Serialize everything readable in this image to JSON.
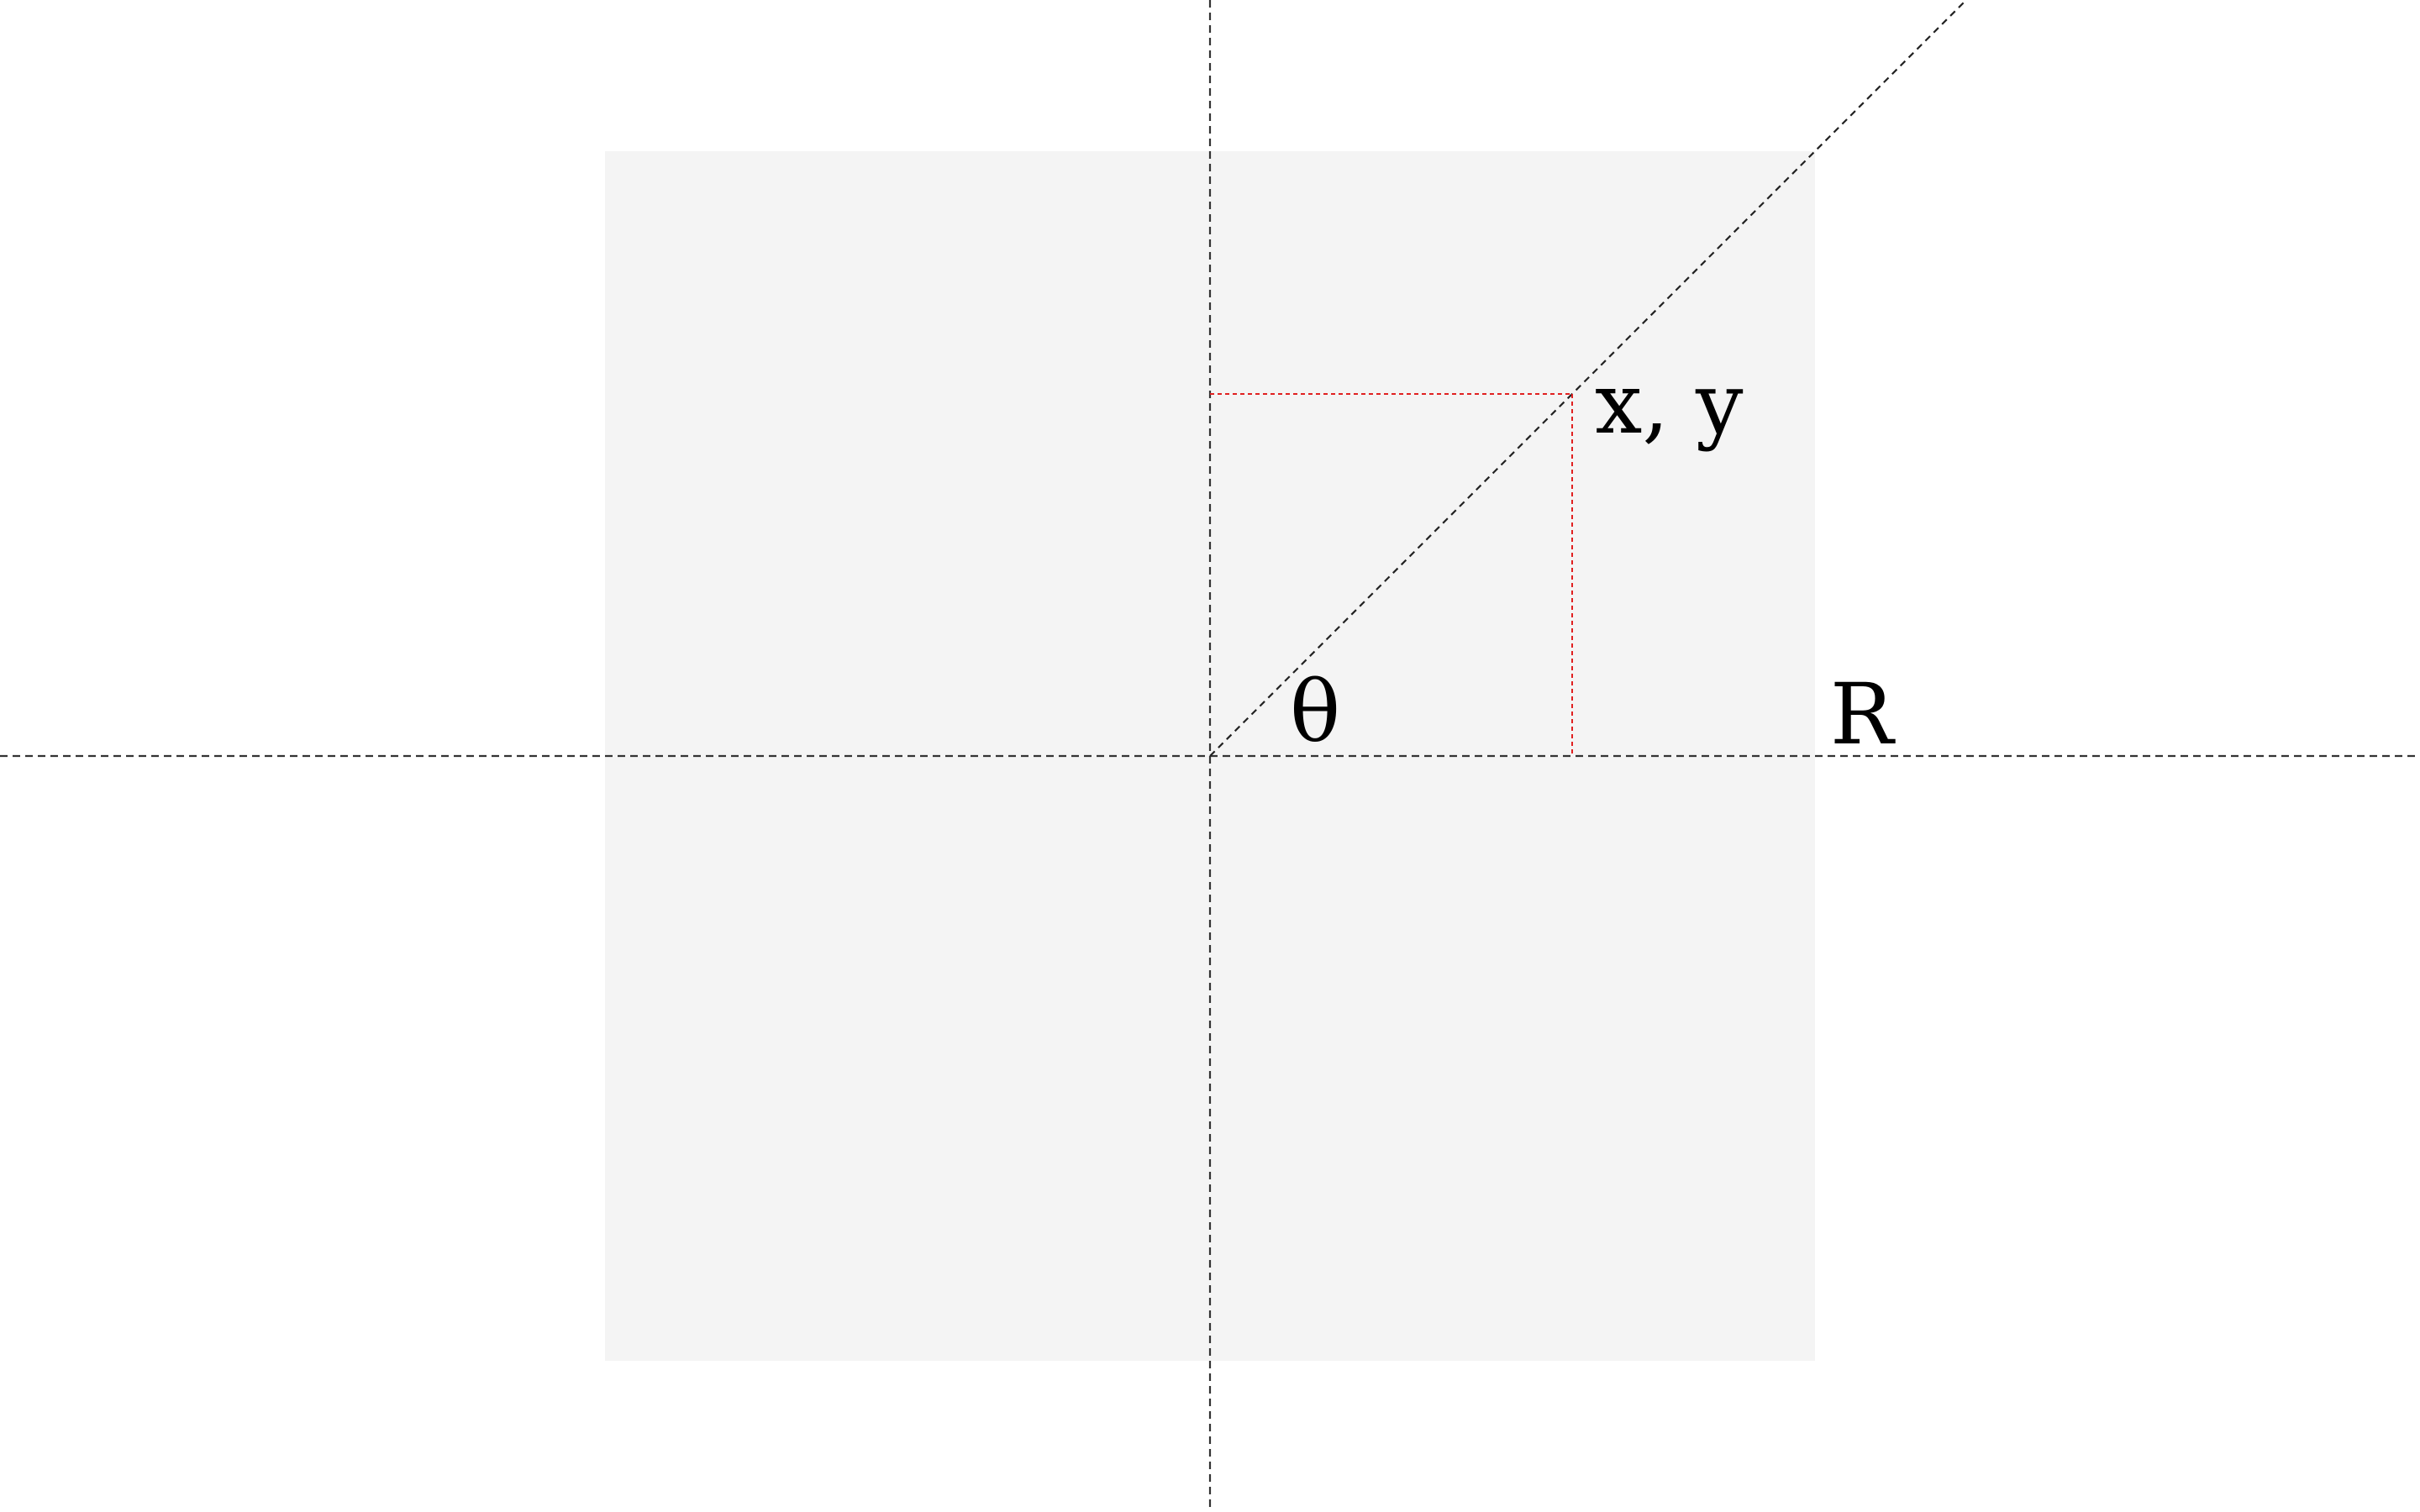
{
  "diagram": {
    "labels": {
      "point": "x, y",
      "angle": "θ",
      "radius": "R"
    },
    "colors": {
      "background": "#ffffff",
      "square_fill": "#f4f4f4",
      "axis": "#333333",
      "projection": "#e02020",
      "text": "#000000"
    }
  }
}
